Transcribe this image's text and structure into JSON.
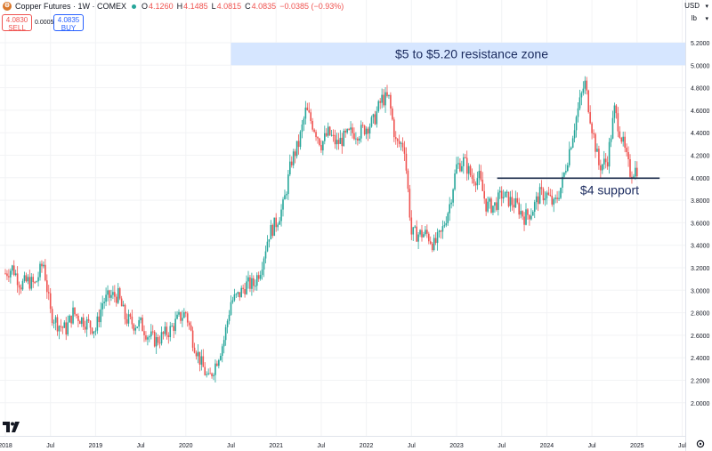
{
  "header": {
    "symbol_icon": "copper-symbol-icon",
    "title": "Copper Futures · 1W · COMEX",
    "market_status_color": "#26a69a",
    "open_label": "O",
    "open": "4.1260",
    "high_label": "H",
    "high": "4.1485",
    "low_label": "L",
    "low": "4.0815",
    "close_label": "C",
    "close": "4.0835",
    "change": "−0.0385 (−0.93%)"
  },
  "trade": {
    "sell_price": "4.0830",
    "sell_label": "SELL",
    "spread": "0.0005",
    "buy_price": "4.0835",
    "buy_label": "BUY"
  },
  "currency": "USD",
  "unit": "lb",
  "colors": {
    "up": "#26a69a",
    "down": "#ef5350",
    "zone": "#d6e6ff",
    "line": "#1a2a4a",
    "text_dark": "#1a2a5e"
  },
  "chart_data": {
    "type": "candlestick",
    "y_axis": {
      "ticks": [
        "5.2000",
        "5.0000",
        "4.8000",
        "4.6000",
        "4.4000",
        "4.2000",
        "4.0000",
        "3.8000",
        "3.6000",
        "3.4000",
        "3.2000",
        "3.0000",
        "2.8000",
        "2.6000",
        "2.4000",
        "2.2000",
        "2.0000"
      ],
      "range": [
        1.92,
        5.28
      ]
    },
    "x_axis": {
      "ticks": [
        "2018",
        "Jul",
        "2019",
        "Jul",
        "2020",
        "Jul",
        "2021",
        "Jul",
        "2022",
        "Jul",
        "2023",
        "Jul",
        "2024",
        "Jul",
        "2025",
        "Jul"
      ],
      "range": [
        "2018-01",
        "2025-12"
      ]
    },
    "series": [
      {
        "t": 2018.0,
        "p": 3.15
      },
      {
        "t": 2018.08,
        "p": 3.2
      },
      {
        "t": 2018.17,
        "p": 3.05
      },
      {
        "t": 2018.25,
        "p": 3.08
      },
      {
        "t": 2018.33,
        "p": 3.05
      },
      {
        "t": 2018.42,
        "p": 3.25
      },
      {
        "t": 2018.5,
        "p": 2.8
      },
      {
        "t": 2018.58,
        "p": 2.7
      },
      {
        "t": 2018.67,
        "p": 2.65
      },
      {
        "t": 2018.75,
        "p": 2.8
      },
      {
        "t": 2018.83,
        "p": 2.75
      },
      {
        "t": 2018.92,
        "p": 2.7
      },
      {
        "t": 2019.0,
        "p": 2.65
      },
      {
        "t": 2019.08,
        "p": 2.9
      },
      {
        "t": 2019.17,
        "p": 2.95
      },
      {
        "t": 2019.25,
        "p": 2.95
      },
      {
        "t": 2019.33,
        "p": 2.75
      },
      {
        "t": 2019.42,
        "p": 2.7
      },
      {
        "t": 2019.5,
        "p": 2.7
      },
      {
        "t": 2019.58,
        "p": 2.6
      },
      {
        "t": 2019.67,
        "p": 2.55
      },
      {
        "t": 2019.75,
        "p": 2.6
      },
      {
        "t": 2019.83,
        "p": 2.65
      },
      {
        "t": 2019.92,
        "p": 2.75
      },
      {
        "t": 2020.0,
        "p": 2.8
      },
      {
        "t": 2020.08,
        "p": 2.55
      },
      {
        "t": 2020.17,
        "p": 2.35
      },
      {
        "t": 2020.25,
        "p": 2.2
      },
      {
        "t": 2020.33,
        "p": 2.35
      },
      {
        "t": 2020.42,
        "p": 2.55
      },
      {
        "t": 2020.5,
        "p": 2.9
      },
      {
        "t": 2020.58,
        "p": 2.95
      },
      {
        "t": 2020.67,
        "p": 3.05
      },
      {
        "t": 2020.75,
        "p": 3.05
      },
      {
        "t": 2020.83,
        "p": 3.2
      },
      {
        "t": 2020.92,
        "p": 3.5
      },
      {
        "t": 2021.0,
        "p": 3.6
      },
      {
        "t": 2021.08,
        "p": 3.75
      },
      {
        "t": 2021.17,
        "p": 4.15
      },
      {
        "t": 2021.25,
        "p": 4.3
      },
      {
        "t": 2021.33,
        "p": 4.6
      },
      {
        "t": 2021.42,
        "p": 4.45
      },
      {
        "t": 2021.5,
        "p": 4.3
      },
      {
        "t": 2021.58,
        "p": 4.4
      },
      {
        "t": 2021.67,
        "p": 4.3
      },
      {
        "t": 2021.75,
        "p": 4.35
      },
      {
        "t": 2021.83,
        "p": 4.4
      },
      {
        "t": 2021.92,
        "p": 4.4
      },
      {
        "t": 2022.0,
        "p": 4.45
      },
      {
        "t": 2022.08,
        "p": 4.5
      },
      {
        "t": 2022.17,
        "p": 4.7
      },
      {
        "t": 2022.25,
        "p": 4.7
      },
      {
        "t": 2022.33,
        "p": 4.3
      },
      {
        "t": 2022.42,
        "p": 4.3
      },
      {
        "t": 2022.5,
        "p": 3.5
      },
      {
        "t": 2022.58,
        "p": 3.5
      },
      {
        "t": 2022.67,
        "p": 3.5
      },
      {
        "t": 2022.75,
        "p": 3.4
      },
      {
        "t": 2022.83,
        "p": 3.5
      },
      {
        "t": 2022.92,
        "p": 3.75
      },
      {
        "t": 2023.0,
        "p": 4.1
      },
      {
        "t": 2023.08,
        "p": 4.15
      },
      {
        "t": 2023.17,
        "p": 4.0
      },
      {
        "t": 2023.25,
        "p": 4.0
      },
      {
        "t": 2023.33,
        "p": 3.75
      },
      {
        "t": 2023.42,
        "p": 3.75
      },
      {
        "t": 2023.5,
        "p": 3.85
      },
      {
        "t": 2023.58,
        "p": 3.8
      },
      {
        "t": 2023.67,
        "p": 3.75
      },
      {
        "t": 2023.75,
        "p": 3.65
      },
      {
        "t": 2023.83,
        "p": 3.7
      },
      {
        "t": 2023.92,
        "p": 3.85
      },
      {
        "t": 2024.0,
        "p": 3.85
      },
      {
        "t": 2024.08,
        "p": 3.75
      },
      {
        "t": 2024.17,
        "p": 3.95
      },
      {
        "t": 2024.25,
        "p": 4.25
      },
      {
        "t": 2024.33,
        "p": 4.55
      },
      {
        "t": 2024.42,
        "p": 4.85
      },
      {
        "t": 2024.5,
        "p": 4.45
      },
      {
        "t": 2024.58,
        "p": 4.1
      },
      {
        "t": 2024.67,
        "p": 4.15
      },
      {
        "t": 2024.75,
        "p": 4.6
      },
      {
        "t": 2024.83,
        "p": 4.35
      },
      {
        "t": 2024.92,
        "p": 4.05
      },
      {
        "t": 2025.0,
        "p": 4.08
      }
    ],
    "annotations": [
      {
        "type": "zone",
        "y_from": 5.0,
        "y_to": 5.2,
        "x_from": 2020.5,
        "text": "$5 to $5.20 resistance zone"
      },
      {
        "type": "hline",
        "y": 4.0,
        "x_from": 2023.45,
        "x_to": 2025.25,
        "text": "$4 support"
      }
    ]
  }
}
